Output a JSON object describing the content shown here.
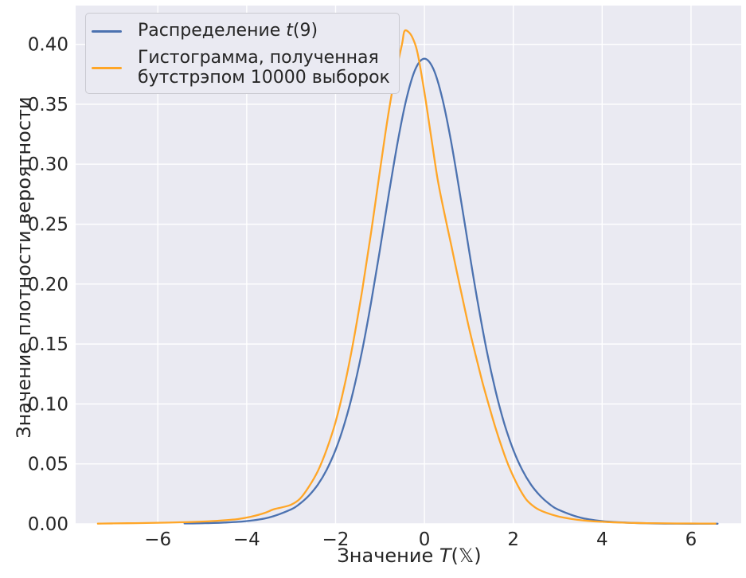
{
  "figure": {
    "kind": "density-plot"
  },
  "colors": {
    "background": "#ffffff",
    "plot_background": "#eaeaf2",
    "grid": "#ffffff",
    "text": "#262626",
    "t_line": "#4c72b0",
    "bootstrap_line": "#ffa627",
    "legend_background": "#eaeaf2",
    "legend_border": "#cacad1"
  },
  "legend": {
    "position": "upper left",
    "items": [
      {
        "name": "t-distribution",
        "label_pre": "Распределение ",
        "label_var": "t",
        "label_post": "(9)",
        "full_label": "Распределение t(9)"
      },
      {
        "name": "bootstrap-histogram",
        "line1": "Гистограмма, полученная",
        "line2": "бутстрэпом 10000 выборок",
        "full_label": "Гистограмма, полученная бутстрэпом 10000 выборок"
      }
    ]
  },
  "chart_data": {
    "type": "line",
    "title": "",
    "xlabel": "Значение T(𝕏)",
    "xlabel_parts": {
      "pre": "Значение ",
      "var": "T",
      "post": "(𝕏)"
    },
    "ylabel": "Значение плотности вероятности",
    "xlim": [
      -7.85,
      7.13
    ],
    "ylim": [
      0,
      0.4323
    ],
    "grid": true,
    "legend_position": "upper left",
    "xticks": [
      -6,
      -4,
      -2,
      0,
      2,
      4,
      6
    ],
    "xtick_labels": [
      "−6",
      "−4",
      "−2",
      "0",
      "2",
      "4",
      "6"
    ],
    "yticks": [
      0.0,
      0.05,
      0.1,
      0.15,
      0.2,
      0.25,
      0.3,
      0.35,
      0.4
    ],
    "ytick_labels": [
      "0.00",
      "0.05",
      "0.10",
      "0.15",
      "0.20",
      "0.25",
      "0.30",
      "0.35",
      "0.40"
    ],
    "series": [
      {
        "id": "t-distribution",
        "name": "Распределение t(9)",
        "color": "#4c72b0",
        "peak": {
          "x": 0,
          "y": 0.388
        },
        "x": [
          -5.4,
          -5.0,
          -4.5,
          -4.0,
          -3.5,
          -3.0,
          -2.8,
          -2.6,
          -2.4,
          -2.2,
          -2.0,
          -1.8,
          -1.6,
          -1.4,
          -1.2,
          -1.0,
          -0.8,
          -0.6,
          -0.4,
          -0.2,
          0.0,
          0.2,
          0.4,
          0.6,
          0.8,
          1.0,
          1.2,
          1.4,
          1.6,
          1.8,
          2.0,
          2.2,
          2.4,
          2.6,
          2.8,
          3.0,
          3.5,
          4.0,
          4.5,
          5.0,
          5.5,
          6.0,
          6.6
        ],
        "y": [
          0.0003,
          0.0005,
          0.0011,
          0.0023,
          0.0053,
          0.0121,
          0.0169,
          0.0236,
          0.0327,
          0.0451,
          0.0617,
          0.0834,
          0.111,
          0.1449,
          0.1847,
          0.2291,
          0.2752,
          0.3189,
          0.3553,
          0.3795,
          0.388,
          0.3795,
          0.3553,
          0.3189,
          0.2752,
          0.2291,
          0.1847,
          0.1449,
          0.111,
          0.0834,
          0.0617,
          0.0451,
          0.0327,
          0.0236,
          0.0169,
          0.0121,
          0.0053,
          0.0023,
          0.0011,
          0.0005,
          0.0002,
          0.0001,
          0.0001
        ]
      },
      {
        "id": "bootstrap-kde",
        "name": "Гистограмма, полученная бутстрэпом 10000 выборок",
        "color": "#ffa627",
        "peak": {
          "x": -0.45,
          "y": 0.411
        },
        "x": [
          -7.35,
          -7.0,
          -6.5,
          -6.0,
          -5.5,
          -5.0,
          -4.6,
          -4.2,
          -3.9,
          -3.6,
          -3.4,
          -3.2,
          -3.0,
          -2.8,
          -2.6,
          -2.4,
          -2.2,
          -2.0,
          -1.8,
          -1.6,
          -1.4,
          -1.2,
          -1.0,
          -0.85,
          -0.7,
          -0.6,
          -0.5,
          -0.45,
          -0.35,
          -0.25,
          -0.15,
          0.0,
          0.15,
          0.3,
          0.45,
          0.6,
          0.8,
          1.0,
          1.15,
          1.3,
          1.45,
          1.6,
          1.75,
          1.9,
          2.1,
          2.3,
          2.5,
          2.7,
          3.0,
          3.3,
          3.6,
          4.0,
          4.5,
          5.0,
          5.5,
          6.0,
          6.55
        ],
        "y": [
          0.0002,
          0.0004,
          0.0006,
          0.0009,
          0.0013,
          0.0019,
          0.0027,
          0.004,
          0.006,
          0.009,
          0.012,
          0.0138,
          0.016,
          0.021,
          0.031,
          0.044,
          0.062,
          0.085,
          0.115,
          0.152,
          0.195,
          0.243,
          0.295,
          0.333,
          0.366,
          0.384,
          0.401,
          0.411,
          0.41,
          0.404,
          0.392,
          0.36,
          0.323,
          0.287,
          0.259,
          0.233,
          0.198,
          0.164,
          0.141,
          0.119,
          0.099,
          0.08,
          0.063,
          0.048,
          0.032,
          0.02,
          0.0135,
          0.0098,
          0.0063,
          0.0042,
          0.0028,
          0.0017,
          0.001,
          0.0006,
          0.0004,
          0.0003,
          0.0002
        ]
      }
    ]
  }
}
